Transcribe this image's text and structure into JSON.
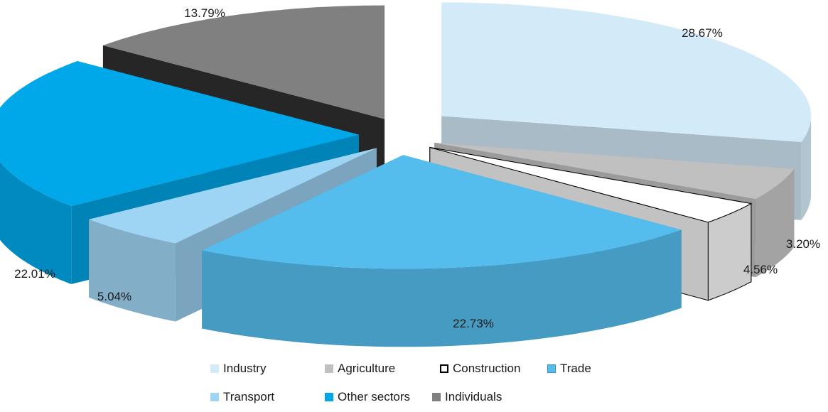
{
  "chart_data": {
    "type": "pie",
    "style": "3d-exploded",
    "categories": [
      "Industry",
      "Agriculture",
      "Construction",
      "Trade",
      "Transport",
      "Other sectors",
      "Individuals"
    ],
    "values": [
      28.67,
      4.56,
      3.2,
      22.73,
      5.04,
      22.01,
      13.79
    ],
    "value_labels": [
      "28.67%",
      "4.56%",
      "3.20%",
      "22.73%",
      "5.04%",
      "22.01%",
      "13.79%"
    ],
    "colors": [
      "#d3eaf9",
      "#c0c0c0",
      "#ffffff",
      "#55bdee",
      "#9ed4f4",
      "#00a8ea",
      "#808080"
    ],
    "legend_position": "bottom",
    "legend": [
      "Industry",
      "Agriculture",
      "Construction",
      "Trade",
      "Transport",
      "Other sectors",
      "Individuals"
    ]
  }
}
